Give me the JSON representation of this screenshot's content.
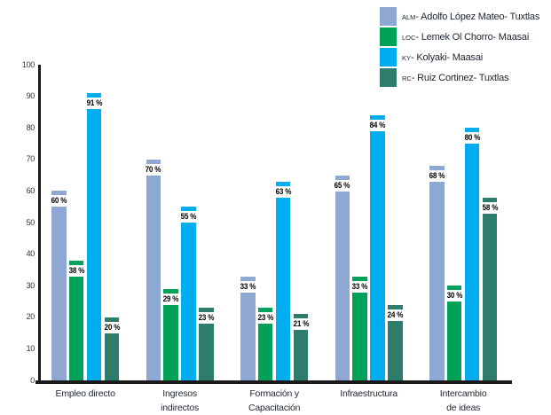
{
  "chart_data": {
    "type": "bar",
    "title": "",
    "xlabel": "",
    "ylabel": "",
    "categories": [
      "Empleo directo",
      "Ingresos indirectos",
      "Formación y Capacitación",
      "Infraestructura",
      "Intercambio de ideas"
    ],
    "categories_lines": [
      [
        "Empleo directo"
      ],
      [
        "Ingresos",
        "indirectos"
      ],
      [
        "Formación y",
        "Capacitación"
      ],
      [
        "Infraestructura"
      ],
      [
        "Intercambio",
        "de ideas"
      ]
    ],
    "series": [
      {
        "key": "ALM",
        "name": "Adolfo López Mateo- Tuxtlas",
        "color": "#8fa7d3",
        "values": [
          60,
          70,
          33,
          65,
          68
        ]
      },
      {
        "key": "LOC",
        "name": "Lemek Ol Chorro- Maasai",
        "color": "#00a158",
        "values": [
          38,
          29,
          23,
          33,
          30
        ]
      },
      {
        "key": "KY",
        "name": "Kolyaki- Maasai",
        "color": "#00aeef",
        "values": [
          91,
          55,
          63,
          84,
          80
        ]
      },
      {
        "key": "RC",
        "name": "Ruiz Cortinez- Tuxtlas",
        "color": "#2e7c6c",
        "values": [
          20,
          23,
          21,
          24,
          58
        ]
      }
    ],
    "bar_value_labels": [
      [
        "60 %",
        "70 %",
        "33 %",
        "65 %",
        "68 %"
      ],
      [
        "38 %",
        "29 %",
        "23 %",
        "33 %",
        "30 %"
      ],
      [
        "91 %",
        "55 %",
        "63 %",
        "84 %",
        "80 %"
      ],
      [
        "20 %",
        "23 %",
        "21 %",
        "24 %",
        "58 %"
      ]
    ],
    "value_suffix": " %",
    "ylim": [
      0,
      100
    ],
    "yticks": [
      0,
      10,
      20,
      30,
      40,
      50,
      60,
      70,
      80,
      90,
      100
    ],
    "grid": false,
    "legend_position": "top-right",
    "colors": {
      "axis": "#1a1a1a",
      "tick_label": "#333333",
      "category_label": "#1f2531",
      "legend_text": "#1c2430",
      "bar_label_bg": "#ffffff",
      "bar_label_text": "#000000",
      "background": "#ffffff"
    }
  }
}
